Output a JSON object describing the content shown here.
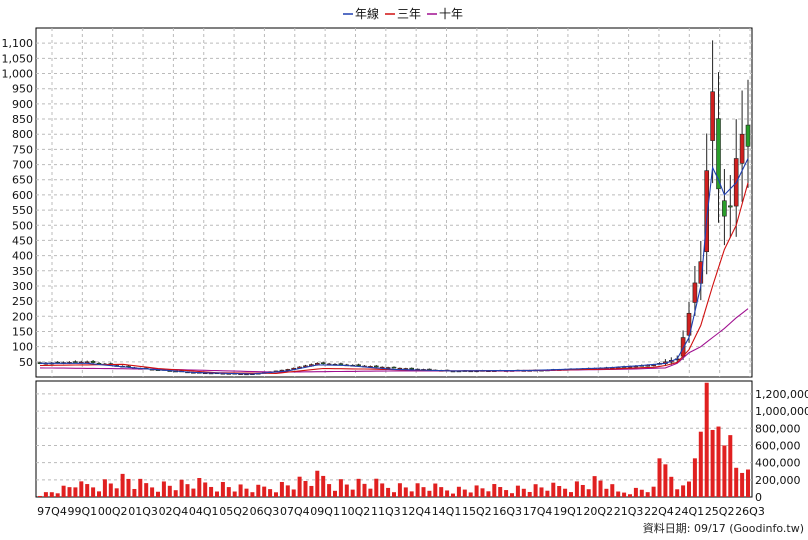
{
  "chart_data": [
    {
      "type": "candlestick",
      "legend": [
        {
          "name": "年線",
          "color": "#1f3fb0"
        },
        {
          "name": "三年",
          "color": "#d01010"
        },
        {
          "name": "十年",
          "color": "#a01090"
        }
      ],
      "y_ticks": [
        50,
        100,
        150,
        200,
        250,
        300,
        350,
        400,
        450,
        500,
        550,
        600,
        650,
        700,
        750,
        800,
        850,
        900,
        950,
        "1,000",
        "1,050",
        "1,100"
      ],
      "ylim": [
        0,
        1150
      ],
      "x_ticks": [
        "97Q4",
        "99Q1",
        "00Q2",
        "01Q3",
        "02Q4",
        "04Q1",
        "05Q2",
        "06Q3",
        "07Q4",
        "09Q1",
        "10Q2",
        "11Q3",
        "12Q4",
        "14Q1",
        "15Q2",
        "16Q3",
        "17Q4",
        "19Q1",
        "20Q2",
        "21Q3",
        "22Q4",
        "24Q1",
        "25Q2",
        "26Q3"
      ],
      "grid": true,
      "quarters_total": 116,
      "series_anchors": {
        "candle_close": [
          [
            0,
            45
          ],
          [
            8,
            50
          ],
          [
            16,
            30
          ],
          [
            26,
            15
          ],
          [
            36,
            10
          ],
          [
            42,
            25
          ],
          [
            47,
            45
          ],
          [
            52,
            40
          ],
          [
            60,
            30
          ],
          [
            70,
            20
          ],
          [
            84,
            22
          ],
          [
            96,
            30
          ],
          [
            100,
            35
          ],
          [
            104,
            40
          ],
          [
            106,
            50
          ],
          [
            107,
            55
          ],
          [
            108,
            60
          ],
          [
            109,
            130
          ],
          [
            110,
            210
          ],
          [
            111,
            310
          ],
          [
            112,
            380
          ],
          [
            113,
            680
          ],
          [
            114,
            940
          ],
          [
            115,
            620
          ],
          [
            116,
            530
          ],
          [
            117,
            560
          ],
          [
            118,
            720
          ],
          [
            119,
            800
          ],
          [
            120,
            760
          ]
        ],
        "year_line": [
          [
            0,
            45
          ],
          [
            8,
            45
          ],
          [
            16,
            30
          ],
          [
            26,
            15
          ],
          [
            36,
            10
          ],
          [
            42,
            20
          ],
          [
            47,
            40
          ],
          [
            52,
            38
          ],
          [
            60,
            25
          ],
          [
            70,
            20
          ],
          [
            84,
            22
          ],
          [
            96,
            30
          ],
          [
            102,
            38
          ],
          [
            106,
            45
          ],
          [
            108,
            60
          ],
          [
            110,
            130
          ],
          [
            112,
            300
          ],
          [
            113,
            520
          ],
          [
            114,
            690
          ],
          [
            115,
            650
          ],
          [
            116,
            600
          ],
          [
            118,
            640
          ],
          [
            120,
            720
          ]
        ],
        "three_year_line": [
          [
            0,
            38
          ],
          [
            8,
            40
          ],
          [
            14,
            42
          ],
          [
            20,
            28
          ],
          [
            30,
            14
          ],
          [
            40,
            12
          ],
          [
            44,
            20
          ],
          [
            48,
            28
          ],
          [
            56,
            26
          ],
          [
            70,
            20
          ],
          [
            84,
            22
          ],
          [
            96,
            26
          ],
          [
            104,
            32
          ],
          [
            106,
            38
          ],
          [
            108,
            48
          ],
          [
            110,
            90
          ],
          [
            112,
            170
          ],
          [
            114,
            300
          ],
          [
            116,
            420
          ],
          [
            118,
            500
          ],
          [
            120,
            640
          ]
        ],
        "ten_year_line": [
          [
            0,
            30
          ],
          [
            20,
            26
          ],
          [
            40,
            16
          ],
          [
            60,
            20
          ],
          [
            80,
            20
          ],
          [
            100,
            26
          ],
          [
            106,
            30
          ],
          [
            108,
            45
          ],
          [
            110,
            80
          ],
          [
            112,
            100
          ],
          [
            114,
            130
          ],
          [
            116,
            160
          ],
          [
            118,
            195
          ],
          [
            120,
            225
          ]
        ]
      }
    },
    {
      "type": "bar",
      "y_ticks": [
        "1,200,000",
        "1,000,000",
        "800,000",
        "600,000",
        "400,000",
        "200,000",
        0
      ],
      "ylim": [
        0,
        1350000
      ],
      "values_anchor": [
        [
          0,
          30000
        ],
        [
          5,
          120000
        ],
        [
          6,
          180000
        ],
        [
          7,
          130000
        ],
        [
          15,
          220000
        ],
        [
          16,
          150000
        ],
        [
          30,
          160000
        ],
        [
          36,
          90000
        ],
        [
          48,
          230000
        ],
        [
          50,
          180000
        ],
        [
          60,
          140000
        ],
        [
          70,
          100000
        ],
        [
          88,
          120000
        ],
        [
          95,
          200000
        ],
        [
          98,
          60000
        ],
        [
          104,
          120000
        ],
        [
          105,
          450000
        ],
        [
          106,
          380000
        ],
        [
          108,
          90000
        ],
        [
          110,
          180000
        ],
        [
          111,
          450000
        ],
        [
          112,
          760000
        ],
        [
          113,
          1330000
        ],
        [
          114,
          780000
        ],
        [
          115,
          820000
        ],
        [
          116,
          600000
        ],
        [
          117,
          720000
        ],
        [
          118,
          340000
        ],
        [
          119,
          280000
        ],
        [
          120,
          320000
        ]
      ],
      "bar_color": "#e02020"
    }
  ],
  "footer": {
    "source_text": "資料日期: 09/17 (Goodinfo.tw)"
  }
}
